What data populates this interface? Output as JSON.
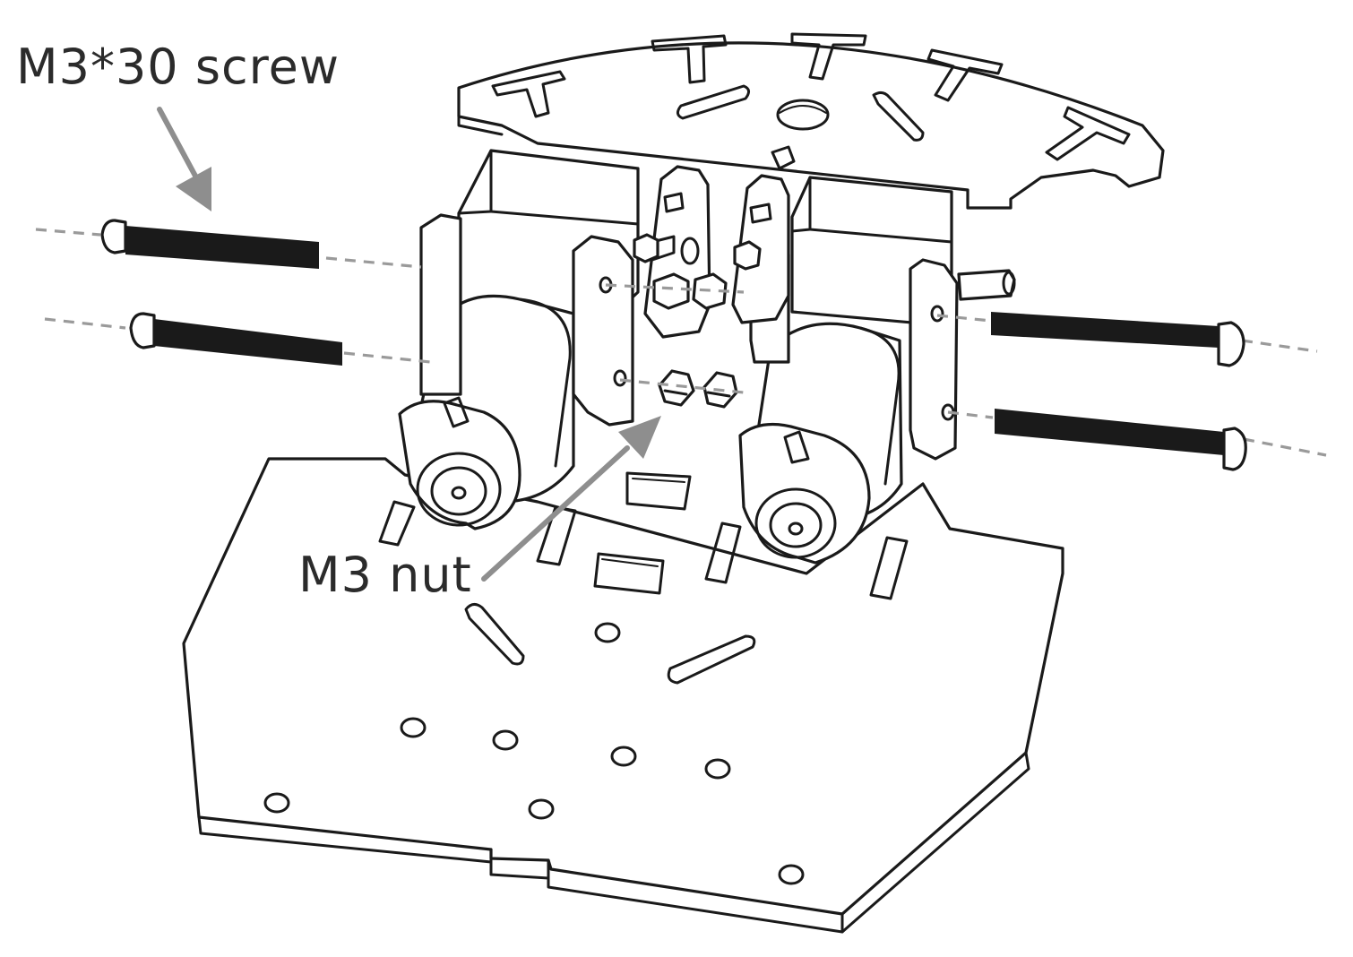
{
  "labels": {
    "screw": "M3*30 screw",
    "nut": "M3 nut"
  },
  "colors": {
    "line": "#1a1a1a",
    "callout_arrow": "#8e8e8e",
    "guide_dash": "#9a9a9a",
    "background": "#ffffff"
  }
}
